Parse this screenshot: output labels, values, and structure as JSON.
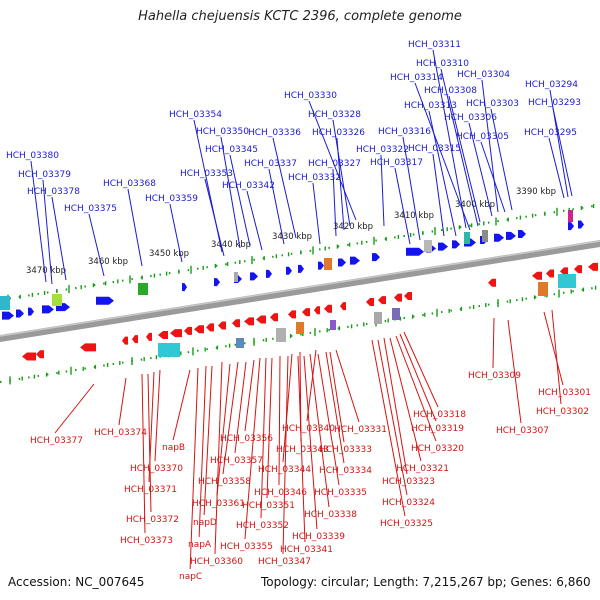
{
  "title": "Hahella chejuensis KCTC 2396, complete genome",
  "accession": "Accession: NC_007645",
  "summary": "Topology: circular; Length: 7,215,267 bp; Genes: 6,860",
  "colors": {
    "forward_label": "#1b1bd0",
    "reverse_label": "#d41414",
    "forward_gene": "#1414ee",
    "reverse_gene": "#ee1414",
    "backbone": "#8a8a8a",
    "ticks": "#1a9a1a"
  },
  "scale_labels": [
    "3470 kbp",
    "3460 kbp",
    "3450 kbp",
    "3440 kbp",
    "3430 kbp",
    "3420 kbp",
    "3410 kbp",
    "3400 kbp",
    "3390 kbp"
  ],
  "forward_labels": [
    "HCH_03311",
    "HCH_03310",
    "HCH_03314",
    "HCH_03304",
    "HCH_03308",
    "HCH_03294",
    "HCH_03313",
    "HCH_03303",
    "HCH_03293",
    "HCH_03306",
    "HCH_03316",
    "HCH_03305",
    "HCH_03295",
    "HCH_03315",
    "HCH_03317",
    "HCH_03330",
    "HCH_03328",
    "HCH_03326",
    "HCH_03322",
    "HCH_03327",
    "HCH_03332",
    "HCH_03354",
    "HCH_03350",
    "HCH_03336",
    "HCH_03345",
    "HCH_03337",
    "HCH_03353",
    "HCH_03342",
    "HCH_03359",
    "HCH_03368",
    "HCH_03380",
    "HCH_03379",
    "HCH_03378",
    "HCH_03375"
  ],
  "reverse_labels": [
    "HCH_03309",
    "HCH_03301",
    "HCH_03302",
    "HCH_03307",
    "HCH_03318",
    "HCH_03319",
    "HCH_03320",
    "HCH_03321",
    "HCH_03323",
    "HCH_03324",
    "HCH_03325",
    "HCH_03331",
    "HCH_03333",
    "HCH_03334",
    "HCH_03335",
    "HCH_03338",
    "HCH_03339",
    "HCH_03341",
    "HCH_03340",
    "HCH_03343",
    "HCH_03344",
    "HCH_03346",
    "HCH_03351",
    "HCH_03352",
    "HCH_03347",
    "HCH_03356",
    "HCH_03357",
    "HCH_03358",
    "HCH_03361",
    "HCH_03355",
    "HCH_03360",
    "napB",
    "napD",
    "napA",
    "napC",
    "HCH_03370",
    "HCH_03371",
    "HCH_03372",
    "HCH_03373",
    "HCH_03374",
    "HCH_03377"
  ]
}
